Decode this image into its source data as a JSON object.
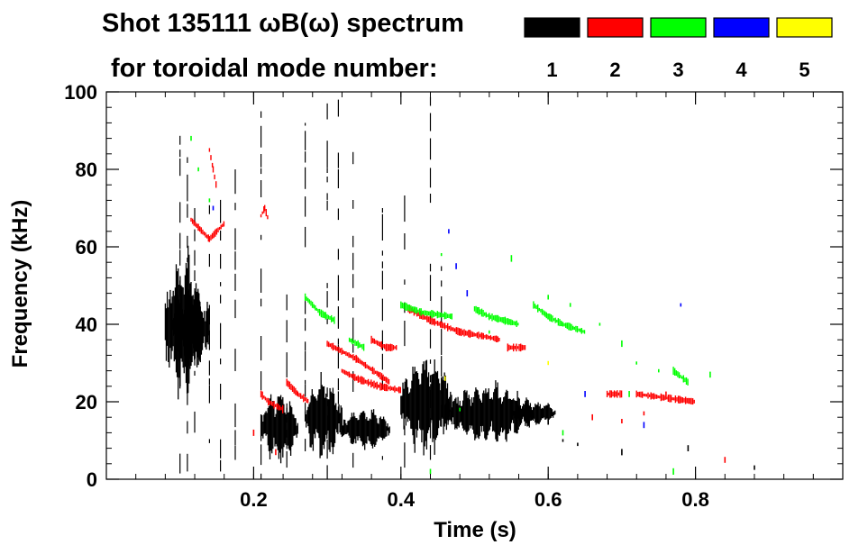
{
  "chart_data": {
    "type": "scatter",
    "title_line1": "Shot 135111 ωB(ω) spectrum",
    "title_line2": "for toroidal mode number:",
    "xlabel": "Time (s)",
    "ylabel": "Frequency (kHz)",
    "xlim": [
      0.0,
      1.0
    ],
    "ylim": [
      0,
      100
    ],
    "xticks": [
      0.2,
      0.4,
      0.6,
      0.8
    ],
    "yticks": [
      0,
      20,
      40,
      60,
      80,
      100
    ],
    "x_minor_step": 0.04,
    "y_minor_step": 4,
    "legend": [
      {
        "label": "1",
        "color": "#000000"
      },
      {
        "label": "2",
        "color": "#ff0000"
      },
      {
        "label": "3",
        "color": "#00ff00"
      },
      {
        "label": "4",
        "color": "#0000ff"
      },
      {
        "label": "5",
        "color": "#ffff00"
      }
    ],
    "series": [
      {
        "mode": "1",
        "color": "#000000",
        "blobs": [
          {
            "t0": 0.08,
            "t1": 0.13,
            "f0": 22,
            "f1": 57
          },
          {
            "t0": 0.09,
            "t1": 0.14,
            "f0": 28,
            "f1": 50
          },
          {
            "t0": 0.21,
            "t1": 0.26,
            "f0": 5,
            "f1": 22
          },
          {
            "t0": 0.27,
            "t1": 0.32,
            "f0": 6,
            "f1": 25
          },
          {
            "t0": 0.32,
            "t1": 0.385,
            "f0": 8,
            "f1": 18
          },
          {
            "t0": 0.4,
            "t1": 0.47,
            "f0": 8,
            "f1": 31
          },
          {
            "t0": 0.46,
            "t1": 0.58,
            "f0": 10,
            "f1": 24
          },
          {
            "t0": 0.55,
            "t1": 0.61,
            "f0": 14,
            "f1": 20
          }
        ],
        "streaks": [
          {
            "t": 0.1,
            "f0": 0,
            "f1": 95
          },
          {
            "t": 0.11,
            "f0": 2,
            "f1": 85
          },
          {
            "t": 0.12,
            "f0": 5,
            "f1": 70
          },
          {
            "t": 0.14,
            "f0": 3,
            "f1": 75
          },
          {
            "t": 0.155,
            "f0": 2,
            "f1": 80
          },
          {
            "t": 0.175,
            "f0": 5,
            "f1": 80
          },
          {
            "t": 0.21,
            "f0": 0,
            "f1": 95
          },
          {
            "t": 0.245,
            "f0": 3,
            "f1": 55
          },
          {
            "t": 0.27,
            "f0": 0,
            "f1": 92
          },
          {
            "t": 0.3,
            "f0": 0,
            "f1": 100
          },
          {
            "t": 0.315,
            "f0": 2,
            "f1": 98
          },
          {
            "t": 0.335,
            "f0": 3,
            "f1": 85
          },
          {
            "t": 0.375,
            "f0": 5,
            "f1": 70
          },
          {
            "t": 0.405,
            "f0": 3,
            "f1": 75
          },
          {
            "t": 0.44,
            "f0": 5,
            "f1": 100
          },
          {
            "t": 0.455,
            "f0": 8,
            "f1": 55
          }
        ],
        "dots": [
          [
            0.62,
            10
          ],
          [
            0.64,
            9
          ],
          [
            0.7,
            7
          ],
          [
            0.79,
            8
          ],
          [
            0.88,
            3
          ],
          [
            0.6,
            15
          ]
        ]
      },
      {
        "mode": "2",
        "color": "#ff0000",
        "ridges": [
          [
            [
              0.115,
              67
            ],
            [
              0.125,
              65
            ],
            [
              0.14,
              62
            ],
            [
              0.16,
              66
            ]
          ],
          [
            [
              0.14,
              85
            ],
            [
              0.145,
              80
            ],
            [
              0.15,
              75
            ]
          ],
          [
            [
              0.21,
              68
            ],
            [
              0.215,
              70
            ],
            [
              0.22,
              67
            ]
          ],
          [
            [
              0.21,
              22
            ],
            [
              0.22,
              20
            ],
            [
              0.24,
              18
            ]
          ],
          [
            [
              0.245,
              25
            ],
            [
              0.26,
              22
            ],
            [
              0.275,
              20
            ]
          ],
          [
            [
              0.3,
              35
            ],
            [
              0.34,
              31
            ],
            [
              0.37,
              27
            ],
            [
              0.385,
              25
            ]
          ],
          [
            [
              0.32,
              28
            ],
            [
              0.34,
              26
            ],
            [
              0.37,
              24
            ],
            [
              0.4,
              23
            ]
          ],
          [
            [
              0.36,
              36
            ],
            [
              0.38,
              34
            ],
            [
              0.395,
              34
            ]
          ],
          [
            [
              0.41,
              44
            ],
            [
              0.44,
              41
            ],
            [
              0.48,
              38
            ],
            [
              0.51,
              37
            ],
            [
              0.535,
              36
            ]
          ],
          [
            [
              0.545,
              34
            ],
            [
              0.57,
              34
            ]
          ],
          [
            [
              0.68,
              22
            ],
            [
              0.7,
              22
            ]
          ],
          [
            [
              0.72,
              22
            ],
            [
              0.8,
              20
            ]
          ]
        ],
        "dots": [
          [
            0.2,
            12
          ],
          [
            0.23,
            7
          ],
          [
            0.66,
            16
          ],
          [
            0.7,
            15
          ],
          [
            0.73,
            17
          ],
          [
            0.76,
            22
          ],
          [
            0.84,
            5
          ]
        ]
      },
      {
        "mode": "3",
        "color": "#00ff00",
        "ridges": [
          [
            [
              0.27,
              47
            ],
            [
              0.29,
              43
            ],
            [
              0.31,
              41
            ]
          ],
          [
            [
              0.33,
              36
            ],
            [
              0.35,
              34
            ]
          ],
          [
            [
              0.4,
              45
            ],
            [
              0.43,
              43
            ],
            [
              0.47,
              42
            ]
          ],
          [
            [
              0.5,
              44
            ],
            [
              0.52,
              42
            ],
            [
              0.56,
              40
            ]
          ],
          [
            [
              0.58,
              45
            ],
            [
              0.6,
              42
            ],
            [
              0.62,
              40
            ],
            [
              0.65,
              38
            ]
          ],
          [
            [
              0.77,
              28
            ],
            [
              0.79,
              25
            ]
          ]
        ],
        "dots": [
          [
            0.115,
            88
          ],
          [
            0.125,
            80
          ],
          [
            0.14,
            72
          ],
          [
            0.455,
            58
          ],
          [
            0.52,
            38
          ],
          [
            0.6,
            47
          ],
          [
            0.63,
            45
          ],
          [
            0.67,
            40
          ],
          [
            0.7,
            35
          ],
          [
            0.72,
            30
          ],
          [
            0.75,
            28
          ],
          [
            0.48,
            18
          ],
          [
            0.71,
            22
          ],
          [
            0.82,
            27
          ],
          [
            0.44,
            2
          ],
          [
            0.55,
            57
          ],
          [
            0.62,
            12
          ],
          [
            0.77,
            2
          ]
        ]
      },
      {
        "mode": "4",
        "color": "#0000ff",
        "dots": [
          [
            0.145,
            70
          ],
          [
            0.465,
            64
          ],
          [
            0.475,
            55
          ],
          [
            0.49,
            48
          ],
          [
            0.78,
            45
          ],
          [
            0.65,
            22
          ],
          [
            0.73,
            14
          ]
        ]
      },
      {
        "mode": "5",
        "color": "#ffff00",
        "dots": [
          [
            0.46,
            26
          ],
          [
            0.6,
            30
          ]
        ]
      }
    ]
  }
}
